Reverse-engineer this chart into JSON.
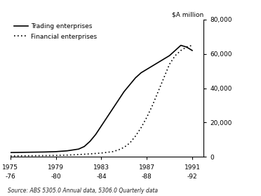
{
  "ylabel": "$A million",
  "source_text": "Source: ABS 5305.0 Annual data, 5306.0 Quarterly data",
  "ylim": [
    0,
    80000
  ],
  "yticks": [
    0,
    20000,
    40000,
    60000,
    80000
  ],
  "ytick_labels": [
    "0",
    "20,000",
    "40,000",
    "60,000",
    "80,000"
  ],
  "xticks": [
    1975,
    1979,
    1983,
    1987,
    1991
  ],
  "xtick_labels_top": [
    "1975",
    "1979",
    "1983",
    "1987",
    "1991"
  ],
  "xtick_labels_bot": [
    "-76",
    "-80",
    "-84",
    "-88",
    "-92"
  ],
  "trading_x": [
    1975,
    1976,
    1977,
    1978,
    1979,
    1980,
    1981,
    1981.5,
    1982,
    1982.5,
    1983,
    1983.5,
    1984,
    1984.5,
    1985,
    1985.5,
    1986,
    1986.5,
    1987,
    1987.5,
    1988,
    1988.5,
    1989,
    1989.5,
    1990,
    1990.5,
    1991
  ],
  "trading_y": [
    2500,
    2600,
    2700,
    2800,
    3000,
    3500,
    4500,
    6000,
    9000,
    13000,
    18000,
    23000,
    28000,
    33000,
    38000,
    42000,
    46000,
    49000,
    51000,
    53000,
    55000,
    57000,
    59000,
    62000,
    65000,
    64000,
    62000
  ],
  "financial_x": [
    1975,
    1976,
    1977,
    1978,
    1979,
    1980,
    1981,
    1982,
    1983,
    1984,
    1984.5,
    1985,
    1985.5,
    1986,
    1986.5,
    1987,
    1987.5,
    1988,
    1988.5,
    1989,
    1989.5,
    1990,
    1990.5,
    1991
  ],
  "financial_y": [
    500,
    600,
    650,
    700,
    800,
    1000,
    1300,
    1700,
    2200,
    3000,
    4000,
    5500,
    8000,
    12000,
    17000,
    23000,
    30000,
    38000,
    46000,
    54000,
    59000,
    62000,
    64000,
    65000
  ],
  "trading_label": "Trading enterprises",
  "financial_label": "Financial enterprises",
  "line_color": "#000000",
  "bg_color": "#ffffff",
  "xlim": [
    1975,
    1992
  ]
}
